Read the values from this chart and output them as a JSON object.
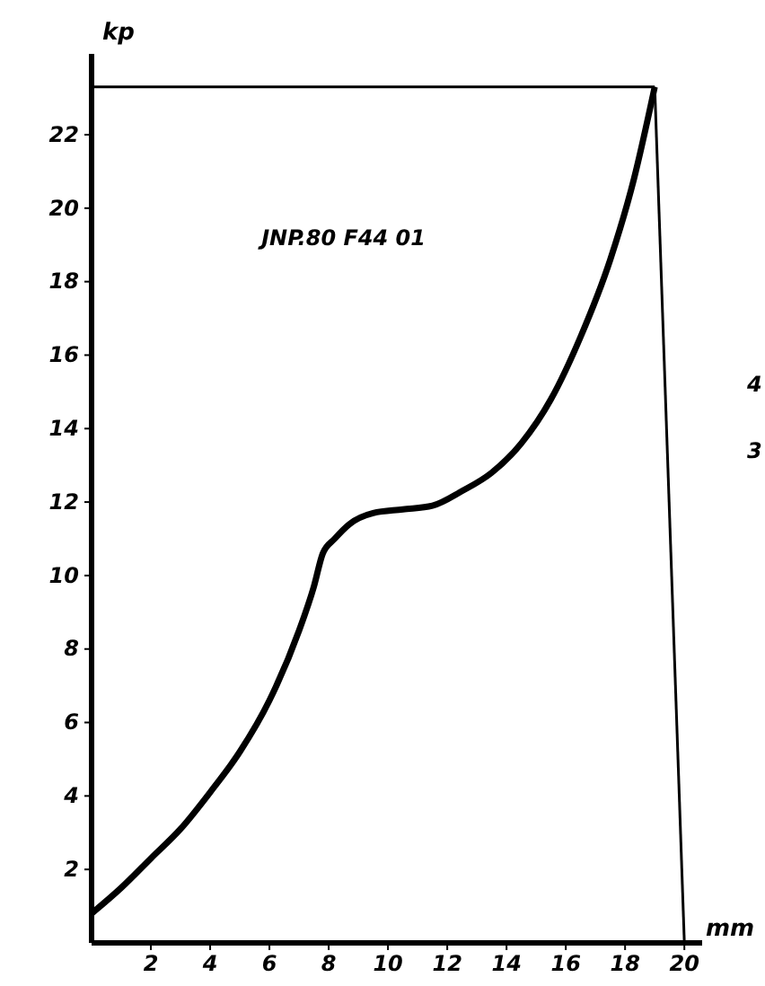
{
  "chart_data": {
    "type": "line",
    "xlabel": "mm",
    "ylabel": "kp",
    "xlim": [
      0,
      20.6
    ],
    "ylim": [
      0,
      24.2
    ],
    "xticks": [
      2,
      4,
      6,
      8,
      10,
      12,
      14,
      16,
      18,
      20
    ],
    "yticks": [
      2,
      4,
      6,
      8,
      10,
      12,
      14,
      16,
      18,
      20,
      22
    ],
    "series": [
      {
        "color": "#000000",
        "x": [
          0,
          1,
          2,
          3,
          4,
          5,
          6,
          7,
          7.5,
          7.8,
          8.2,
          8.7,
          9.5,
          10.5,
          11.5,
          12.5,
          13.5,
          14.5,
          15.5,
          16.5,
          17.5,
          18.3,
          19
        ],
        "values": [
          0.8,
          1.5,
          2.3,
          3.1,
          4.1,
          5.2,
          6.6,
          8.5,
          9.7,
          10.6,
          11.0,
          11.4,
          11.7,
          11.8,
          11.9,
          12.3,
          12.8,
          13.6,
          14.8,
          16.5,
          18.6,
          20.8,
          23.3
        ]
      },
      {
        "color": "#000000",
        "x": [
          19,
          20
        ],
        "values": [
          23.3,
          0
        ]
      }
    ],
    "ref_lines": [
      {
        "axis": "y",
        "value": 23.3,
        "color": "#000000"
      }
    ],
    "annotations": [
      "JNP.80 F44 01",
      "4",
      "3"
    ]
  }
}
